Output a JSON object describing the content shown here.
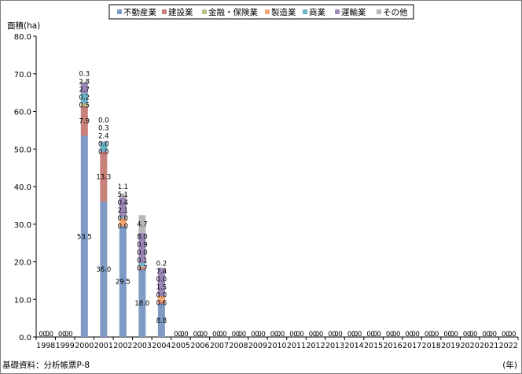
{
  "chart_data": {
    "type": "bar",
    "stacked": true,
    "ylabel": "面積(ha)",
    "xlabel": "(年)",
    "source_note": "基礎資料：分析帳票P-8",
    "ylim": [
      0,
      80
    ],
    "yticks": [
      "0.0",
      "10.0",
      "20.0",
      "30.0",
      "40.0",
      "50.0",
      "60.0",
      "70.0",
      "80.0"
    ],
    "grid": false,
    "legend_position": "top",
    "categories": [
      "1998",
      "1999",
      "2000",
      "2001",
      "2002",
      "2003",
      "2004",
      "2005",
      "2006",
      "2007",
      "2008",
      "2009",
      "2010",
      "2011",
      "2012",
      "2013",
      "2014",
      "2015",
      "2016",
      "2017",
      "2018",
      "2019",
      "2020",
      "2021",
      "2022"
    ],
    "series": [
      {
        "name": "不動産業",
        "color": "#7f9ac5",
        "values": [
          0,
          0,
          53.5,
          36.0,
          29.5,
          18.0,
          8.8,
          0,
          0,
          0,
          0,
          0,
          0,
          0,
          0,
          0,
          0,
          0,
          0,
          0,
          0,
          0,
          0,
          0,
          0
        ]
      },
      {
        "name": "建設業",
        "color": "#c8807b",
        "values": [
          0,
          0,
          7.9,
          13.3,
          0.0,
          0.7,
          0.6,
          0,
          0,
          0,
          0,
          0,
          0,
          0,
          0,
          0,
          0,
          0,
          0,
          0,
          0,
          0,
          0,
          0,
          0
        ]
      },
      {
        "name": "金融・保険業",
        "color": "#b5c08a",
        "values": [
          0,
          0,
          0.5,
          0.0,
          0.0,
          0.1,
          0.0,
          0,
          0,
          0,
          0,
          0,
          0,
          0,
          0,
          0,
          0,
          0,
          0,
          0,
          0,
          0,
          0,
          0,
          0
        ]
      },
      {
        "name": "製造業",
        "color": "#f3a673",
        "values": [
          0,
          0,
          0.2,
          0.0,
          2.1,
          0.0,
          1.5,
          0,
          0,
          0,
          0,
          0,
          0,
          0,
          0,
          0,
          0,
          0,
          0,
          0,
          0,
          0,
          0,
          0,
          0
        ]
      },
      {
        "name": "商業",
        "color": "#6cb5c8",
        "values": [
          0,
          0,
          2.7,
          2.4,
          0.4,
          0.9,
          0.0,
          0,
          0,
          0,
          0,
          0,
          0,
          0,
          0,
          0,
          0,
          0,
          0,
          0,
          0,
          0,
          0,
          0,
          0
        ]
      },
      {
        "name": "運輸業",
        "color": "#9c88b8",
        "values": [
          0,
          0,
          2.8,
          0.3,
          5.1,
          8.0,
          7.4,
          0,
          0,
          0,
          0,
          0,
          0,
          0,
          0,
          0,
          0,
          0,
          0,
          0,
          0,
          0,
          0,
          0,
          0
        ]
      },
      {
        "name": "その他",
        "color": "#b7b7b7",
        "values": [
          0,
          0,
          0.3,
          0.0,
          1.1,
          4.7,
          0.2,
          0,
          0,
          0,
          0,
          0,
          0,
          0,
          0,
          0,
          0,
          0,
          0,
          0,
          0,
          0,
          0,
          0,
          0
        ]
      }
    ],
    "value_label_format": "0.0"
  }
}
